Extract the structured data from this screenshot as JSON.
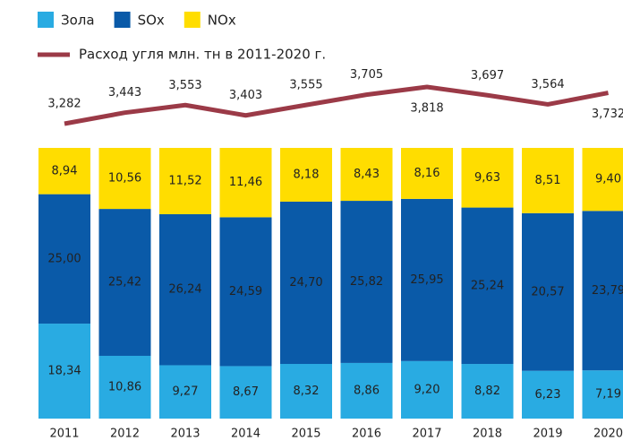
{
  "chart_data": {
    "type": "stacked_bar_line",
    "categories": [
      "2011",
      "2012",
      "2013",
      "2014",
      "2015",
      "2016",
      "2017",
      "2018",
      "2019",
      "2020"
    ],
    "series": [
      {
        "name": "Зола",
        "color": "#29abe2",
        "values": [
          18.34,
          10.86,
          9.27,
          8.67,
          8.32,
          8.86,
          9.2,
          8.82,
          6.23,
          7.19
        ],
        "value_labels": [
          "18,34",
          "10,86",
          "9,27",
          "8,67",
          "8,32",
          "8,86",
          "9,20",
          "8,82",
          "6,23",
          "7,19"
        ]
      },
      {
        "name": "SOx",
        "color": "#0a5aa8",
        "values": [
          25.0,
          25.42,
          26.24,
          24.59,
          24.7,
          25.82,
          25.95,
          25.24,
          20.57,
          23.79
        ],
        "value_labels": [
          "25,00",
          "25,42",
          "26,24",
          "24,59",
          "24,70",
          "25,82",
          "25,95",
          "25,24",
          "20,57",
          "23,79"
        ]
      },
      {
        "name": "NOx",
        "color": "#ffdd00",
        "values": [
          8.94,
          10.56,
          11.52,
          11.46,
          8.18,
          8.43,
          8.16,
          9.63,
          8.51,
          9.4
        ],
        "value_labels": [
          "8,94",
          "10,56",
          "11,52",
          "11,46",
          "8,18",
          "8,43",
          "8,16",
          "9,63",
          "8,51",
          "9,40"
        ]
      },
      {
        "name": "Расход угля млн. тн в 2011-2020 г.",
        "color": "#9b3a47",
        "kind": "line",
        "values": [
          3.282,
          3.443,
          3.553,
          3.403,
          3.555,
          3.705,
          3.818,
          3.697,
          3.564,
          3.732
        ],
        "value_labels": [
          "3,282",
          "3,443",
          "3,553",
          "3,403",
          "3,555",
          "3,705",
          "3,818",
          "3,697",
          "3,564",
          "3,732"
        ]
      }
    ]
  }
}
